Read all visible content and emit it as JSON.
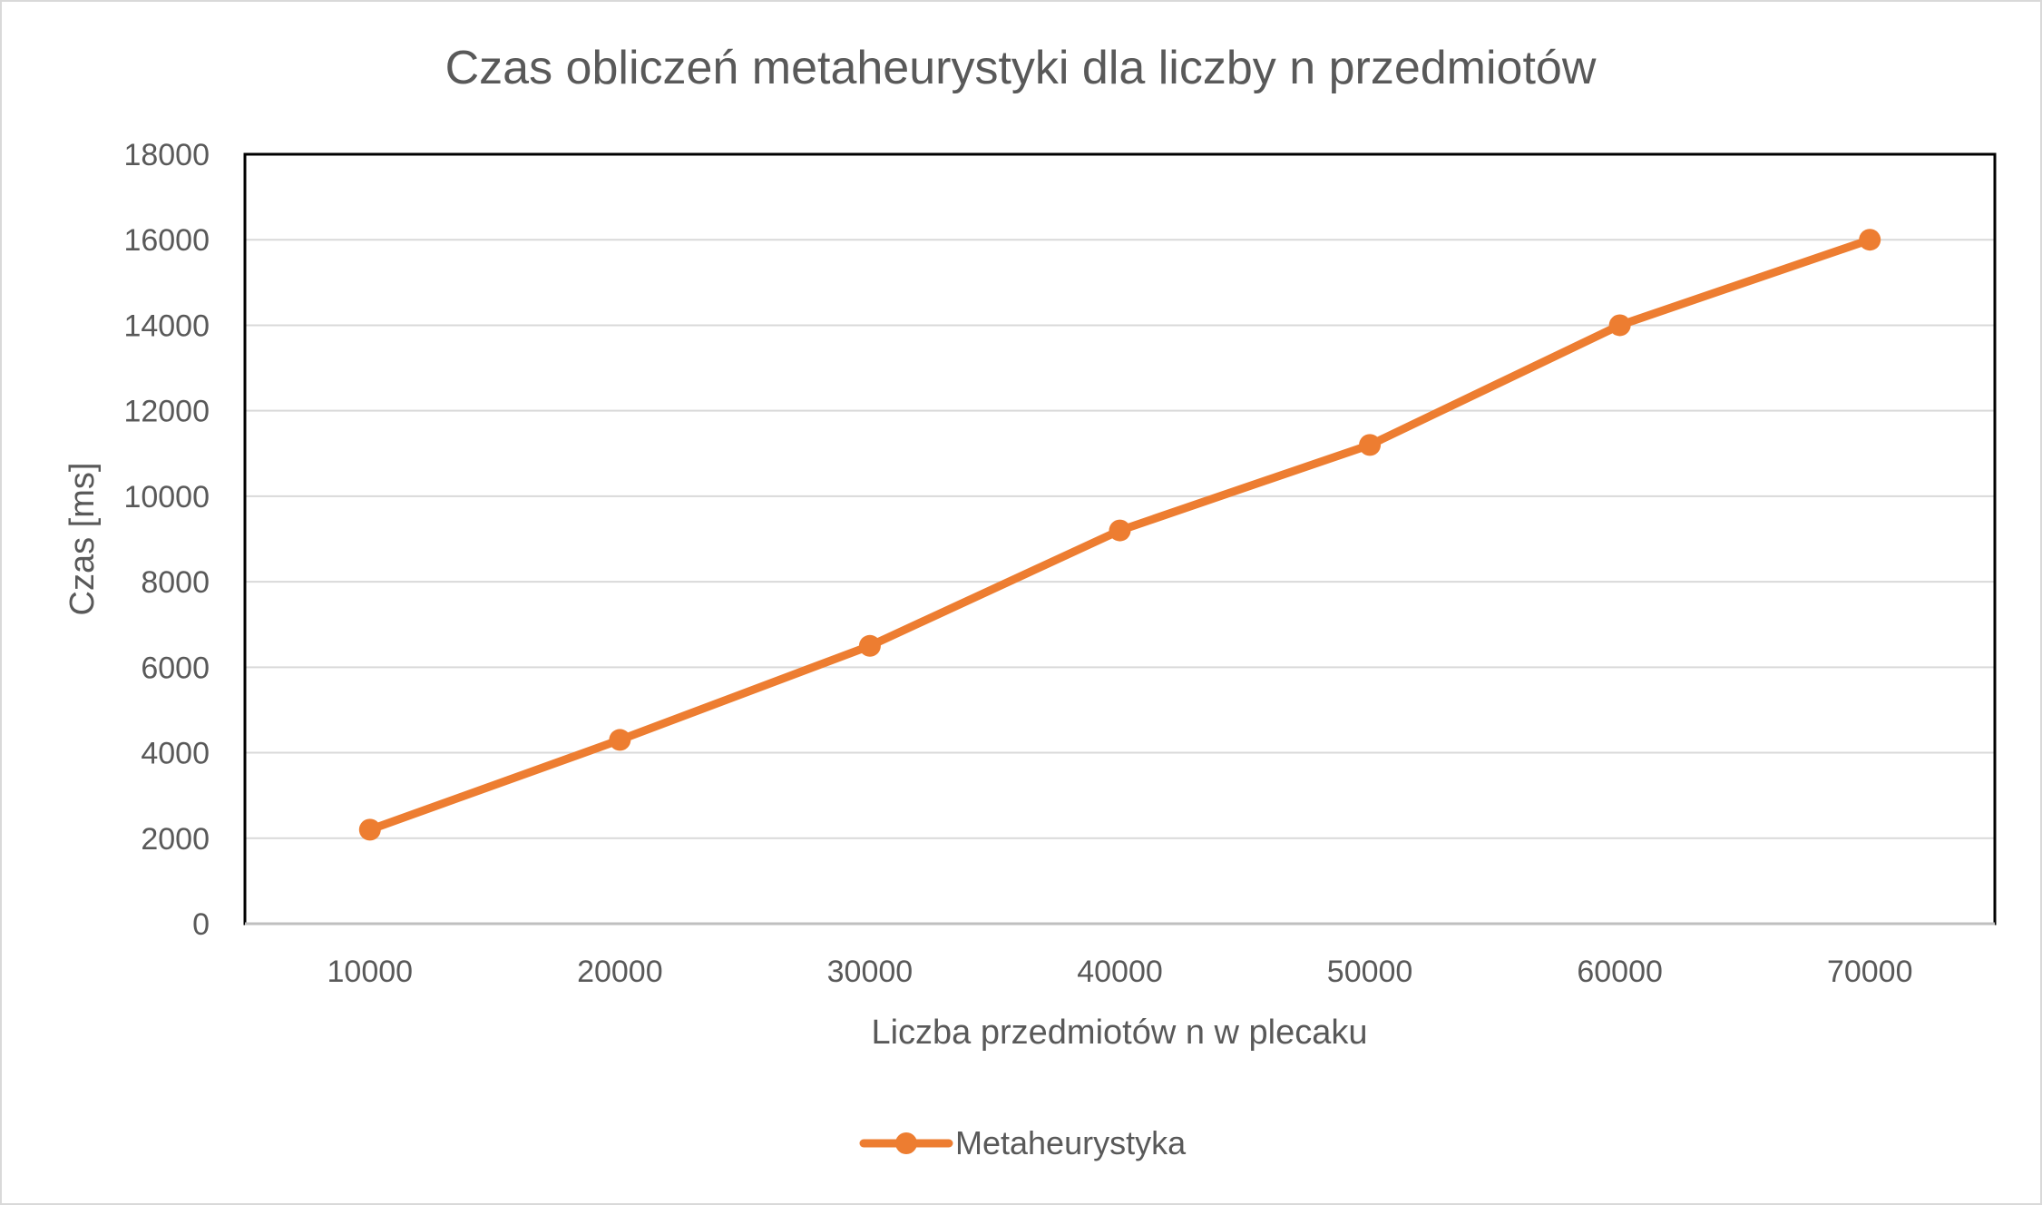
{
  "chart_data": {
    "type": "line",
    "title": "Czas obliczeń metaheurystyki dla liczby n przedmiotów",
    "xlabel": "Liczba przedmiotów n w plecaku",
    "ylabel": "Czas [ms]",
    "categories": [
      "10000",
      "20000",
      "30000",
      "40000",
      "50000",
      "60000",
      "70000"
    ],
    "series": [
      {
        "name": "Metaheurystyka",
        "color": "#ed7d31",
        "values": [
          2200,
          4300,
          6500,
          9200,
          11200,
          14000,
          16000
        ]
      }
    ],
    "ylim": [
      0,
      18000
    ],
    "y_ticks": [
      "0",
      "2000",
      "4000",
      "6000",
      "8000",
      "10000",
      "12000",
      "14000",
      "16000",
      "18000"
    ],
    "grid": true,
    "legend_position": "bottom",
    "marker": "circle"
  }
}
